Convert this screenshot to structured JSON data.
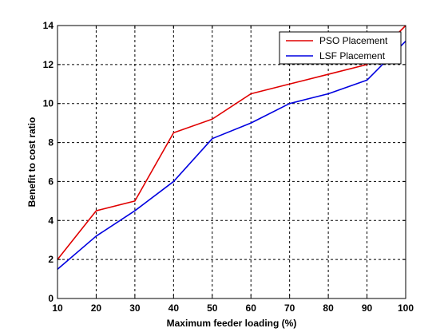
{
  "chart_data": {
    "type": "line",
    "title": "",
    "xlabel": "Maximum feeder loading (%)",
    "ylabel": "Benefit to cost ratio",
    "x": [
      10,
      20,
      30,
      40,
      50,
      60,
      70,
      80,
      90,
      100
    ],
    "xlim": [
      10,
      100
    ],
    "ylim": [
      0,
      14
    ],
    "xticks": [
      10,
      20,
      30,
      40,
      50,
      60,
      70,
      80,
      90,
      100
    ],
    "yticks": [
      0,
      2,
      4,
      6,
      8,
      10,
      12,
      14
    ],
    "grid": true,
    "legend_position": "top-right",
    "series": [
      {
        "name": "PSO Placement",
        "color": "#e00000",
        "values": [
          2.0,
          4.5,
          5.0,
          8.5,
          9.2,
          10.5,
          11.0,
          11.5,
          12.0,
          14.0
        ]
      },
      {
        "name": "LSF Placement",
        "color": "#0000e0",
        "values": [
          1.5,
          3.2,
          4.5,
          6.0,
          8.2,
          9.0,
          10.0,
          10.5,
          11.2,
          13.2
        ]
      }
    ]
  }
}
